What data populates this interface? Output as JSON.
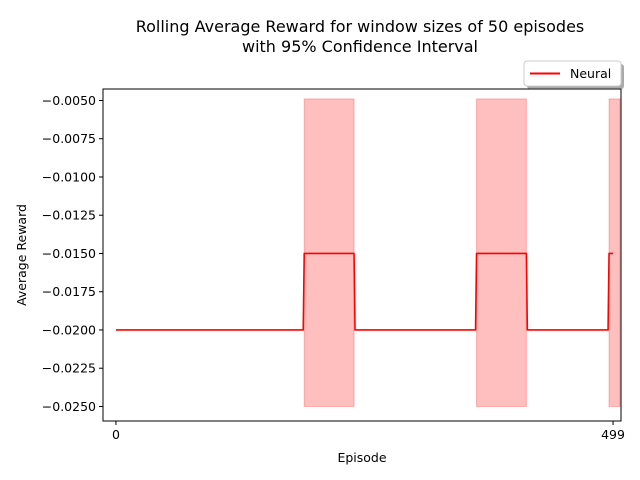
{
  "chart_data": {
    "type": "line",
    "title": "Rolling Average Reward for window sizes of 50 episodes",
    "subtitle": "with 95% Confidence Interval",
    "xlabel": "Episode",
    "ylabel": "Average Reward",
    "xlim": [
      -13,
      507
    ],
    "ylim": [
      -0.02595,
      -0.00425
    ],
    "x_ticks": [
      0,
      499
    ],
    "x_tick_labels": [
      "0",
      "499"
    ],
    "y_ticks": [
      -0.005,
      -0.0075,
      -0.01,
      -0.0125,
      -0.015,
      -0.0175,
      -0.02,
      -0.0225,
      -0.025
    ],
    "y_tick_labels": [
      "−0.0050",
      "−0.0075",
      "−0.0100",
      "−0.0125",
      "−0.0150",
      "−0.0175",
      "−0.0200",
      "−0.0225",
      "−0.0250"
    ],
    "grid": false,
    "legend_position": "top-right, above plot",
    "series": [
      {
        "name": "Neural",
        "color": "#ff0000",
        "x": [
          0,
          188,
          189,
          239,
          240,
          361,
          362,
          412,
          413,
          494,
          495,
          499
        ],
        "y": [
          -0.02,
          -0.02,
          -0.015,
          -0.015,
          -0.02,
          -0.02,
          -0.015,
          -0.015,
          -0.02,
          -0.02,
          -0.015,
          -0.015
        ]
      }
    ],
    "confidence_band": {
      "color": "#ff0000",
      "opacity": 0.25,
      "segments": [
        {
          "x_start": 189,
          "x_end": 239,
          "lower": -0.025,
          "upper": -0.0049
        },
        {
          "x_start": 362,
          "x_end": 412,
          "lower": -0.025,
          "upper": -0.0049
        },
        {
          "x_start": 495,
          "x_end": 506,
          "lower": -0.025,
          "upper": -0.0049
        }
      ]
    }
  }
}
